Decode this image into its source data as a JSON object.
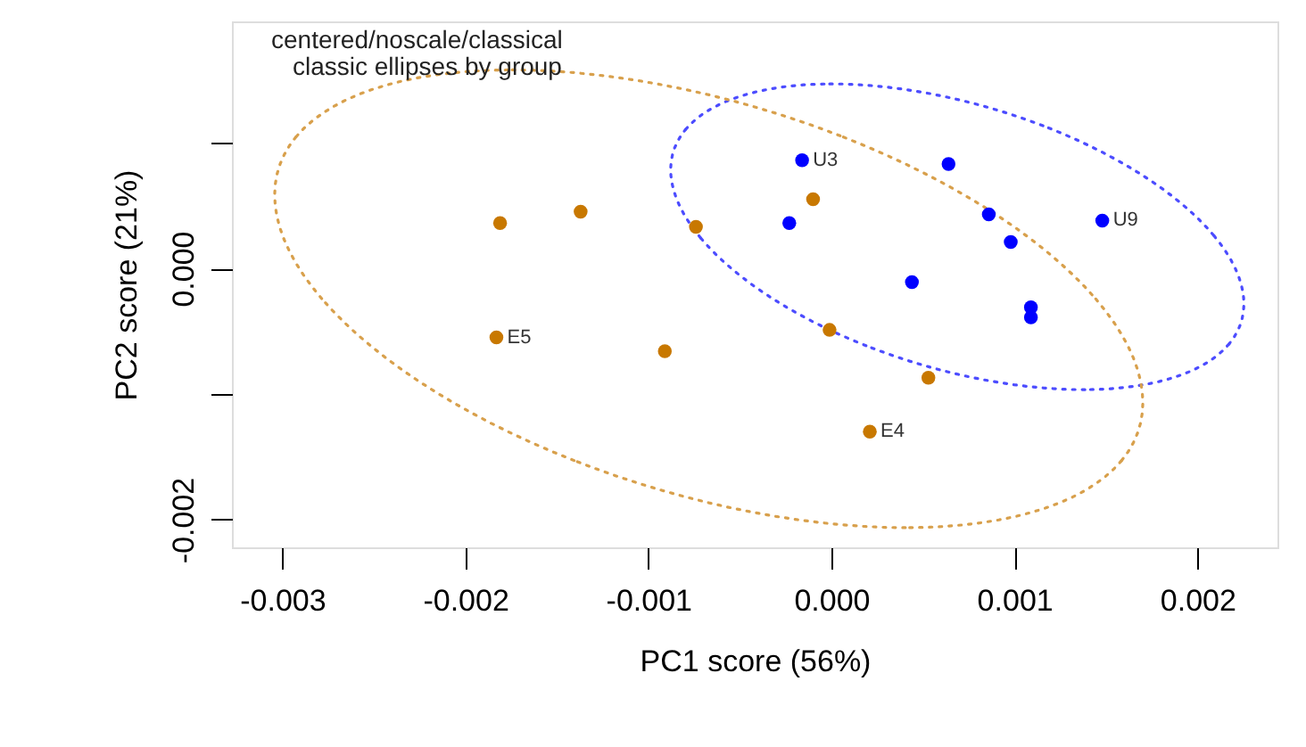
{
  "chart_data": {
    "type": "scatter",
    "xlabel": "PC1 score (56%)",
    "ylabel": "PC2 score (21%)",
    "xlim": [
      -0.003275,
      0.002437
    ],
    "ylim": [
      -0.00222,
      0.001965
    ],
    "xticks": [
      {
        "value": -0.003,
        "label": "-0.003"
      },
      {
        "value": -0.002,
        "label": "-0.002"
      },
      {
        "value": -0.001,
        "label": "-0.001"
      },
      {
        "value": 0,
        "label": "0.000"
      },
      {
        "value": 0.001,
        "label": "0.001"
      },
      {
        "value": 0.002,
        "label": "0.002"
      }
    ],
    "yticks": [
      {
        "value": 0.001,
        "label": null
      },
      {
        "value": 0,
        "label": "0.000"
      },
      {
        "value": -0.001,
        "label": null
      },
      {
        "value": -0.002,
        "label": "-0.002"
      }
    ],
    "grid": false,
    "marker": "circle",
    "series": [
      {
        "color": "#c87800",
        "x": [
          -0.00181,
          -0.00137,
          -0.00074,
          -0.0001,
          -0.00183,
          -0.00091,
          -1e-05,
          0.00053,
          0.00021
        ],
        "values": [
          0.00036,
          0.00045,
          0.00033,
          0.00055,
          -0.00055,
          -0.00066,
          -0.00049,
          -0.00087,
          -0.0013
        ]
      },
      {
        "color": "#0000ff",
        "x": [
          -0.00016,
          0.00064,
          -0.00023,
          0.00086,
          0.00098,
          0.00148,
          0.00044,
          0.00109,
          0.00109
        ],
        "values": [
          0.00086,
          0.00083,
          0.00036,
          0.00043,
          0.00021,
          0.00038,
          -0.00011,
          -0.00031,
          -0.00039
        ]
      }
    ],
    "annotations": [
      "centered/noscale/classical",
      "classic ellipses by group",
      {
        "text": "U3",
        "x": -0.00016,
        "y": 0.00086
      },
      {
        "text": "U9",
        "x": 0.00148,
        "y": 0.00038
      },
      {
        "text": "E5",
        "x": -0.00183,
        "y": -0.00055
      },
      {
        "text": "E4",
        "x": 0.00021,
        "y": -0.0013
      }
    ]
  }
}
